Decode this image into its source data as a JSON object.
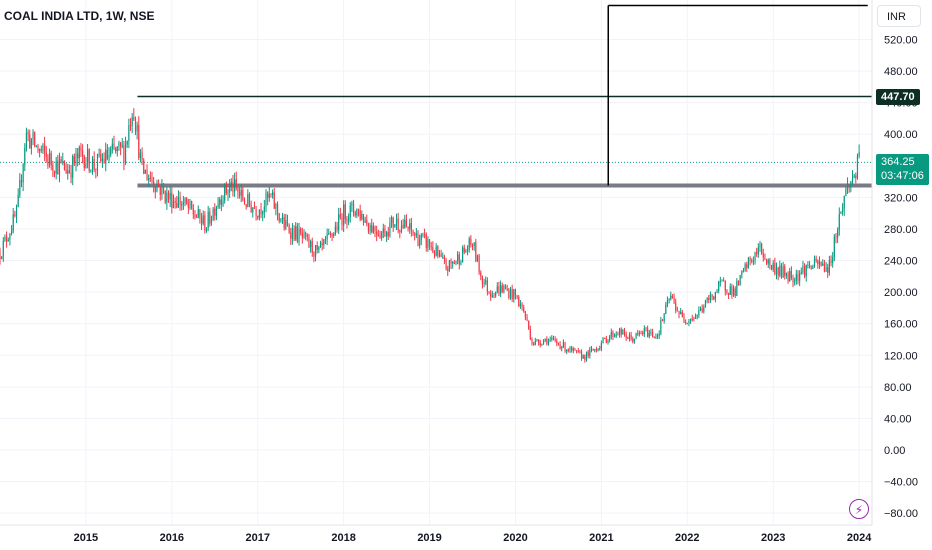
{
  "header": {
    "title": "COAL INDIA LTD, 1W, NSE",
    "currency": "INR"
  },
  "badges": {
    "level_price": "447.70",
    "last_price": "364.25",
    "countdown": "03:47:06"
  },
  "colors": {
    "up": "#089981",
    "down": "#f23645",
    "grid": "#f0f3fa",
    "level_line": "#0d2e24",
    "support_line": "#787b86",
    "icon": "#9c27b0"
  },
  "icons": {
    "corner": "lightning-icon"
  },
  "chart_data": {
    "type": "candlestick",
    "y_axis": {
      "range": [
        -95,
        570
      ],
      "ticks": [
        "520.00",
        "480.00",
        "440.00",
        "400.00",
        "360.00",
        "320.00",
        "280.00",
        "240.00",
        "200.00",
        "160.00",
        "120.00",
        "80.00",
        "40.00",
        "0.00",
        "−40.00",
        "−80.00"
      ]
    },
    "x_axis": {
      "range": [
        2014.0,
        2024.15
      ],
      "ticks": [
        "2015",
        "2016",
        "2017",
        "2018",
        "2019",
        "2020",
        "2021",
        "2022",
        "2023",
        "2024"
      ]
    },
    "grid": true,
    "price_path": [
      [
        2014.0,
        250
      ],
      [
        2014.2,
        300
      ],
      [
        2014.3,
        400
      ],
      [
        2014.45,
        380
      ],
      [
        2014.6,
        365
      ],
      [
        2014.8,
        355
      ],
      [
        2014.95,
        375
      ],
      [
        2015.1,
        360
      ],
      [
        2015.3,
        375
      ],
      [
        2015.45,
        380
      ],
      [
        2015.55,
        440
      ],
      [
        2015.65,
        355
      ],
      [
        2015.8,
        340
      ],
      [
        2015.95,
        320
      ],
      [
        2016.1,
        315
      ],
      [
        2016.25,
        300
      ],
      [
        2016.4,
        285
      ],
      [
        2016.55,
        320
      ],
      [
        2016.7,
        335
      ],
      [
        2016.85,
        315
      ],
      [
        2017.0,
        305
      ],
      [
        2017.15,
        320
      ],
      [
        2017.3,
        285
      ],
      [
        2017.5,
        270
      ],
      [
        2017.7,
        248
      ],
      [
        2017.85,
        270
      ],
      [
        2018.0,
        300
      ],
      [
        2018.15,
        305
      ],
      [
        2018.3,
        285
      ],
      [
        2018.45,
        275
      ],
      [
        2018.6,
        290
      ],
      [
        2018.75,
        280
      ],
      [
        2018.85,
        270
      ],
      [
        2019.0,
        260
      ],
      [
        2019.1,
        245
      ],
      [
        2019.2,
        230
      ],
      [
        2019.35,
        245
      ],
      [
        2019.5,
        262
      ],
      [
        2019.6,
        220
      ],
      [
        2019.7,
        200
      ],
      [
        2019.85,
        205
      ],
      [
        2020.0,
        195
      ],
      [
        2020.1,
        175
      ],
      [
        2020.2,
        135
      ],
      [
        2020.35,
        140
      ],
      [
        2020.5,
        135
      ],
      [
        2020.65,
        125
      ],
      [
        2020.8,
        118
      ],
      [
        2020.95,
        130
      ],
      [
        2021.1,
        145
      ],
      [
        2021.2,
        150
      ],
      [
        2021.35,
        140
      ],
      [
        2021.5,
        150
      ],
      [
        2021.65,
        145
      ],
      [
        2021.8,
        195
      ],
      [
        2021.95,
        165
      ],
      [
        2022.1,
        170
      ],
      [
        2022.25,
        190
      ],
      [
        2022.4,
        210
      ],
      [
        2022.55,
        200
      ],
      [
        2022.7,
        235
      ],
      [
        2022.85,
        255
      ],
      [
        2022.95,
        235
      ],
      [
        2023.1,
        225
      ],
      [
        2023.25,
        220
      ],
      [
        2023.4,
        232
      ],
      [
        2023.55,
        235
      ],
      [
        2023.65,
        230
      ],
      [
        2023.75,
        285
      ],
      [
        2023.85,
        330
      ],
      [
        2023.95,
        350
      ],
      [
        2024.0,
        364.25
      ]
    ],
    "annotations": {
      "resistance_level": {
        "price": 447.7,
        "x_start": 2015.6
      },
      "support_level": {
        "price": 335,
        "x_start": 2015.6
      },
      "measure_line": {
        "x": 2021.08,
        "price_from": 335,
        "price_to": 563,
        "x_end": 2024.1
      },
      "last_price_line": 364.25
    }
  }
}
